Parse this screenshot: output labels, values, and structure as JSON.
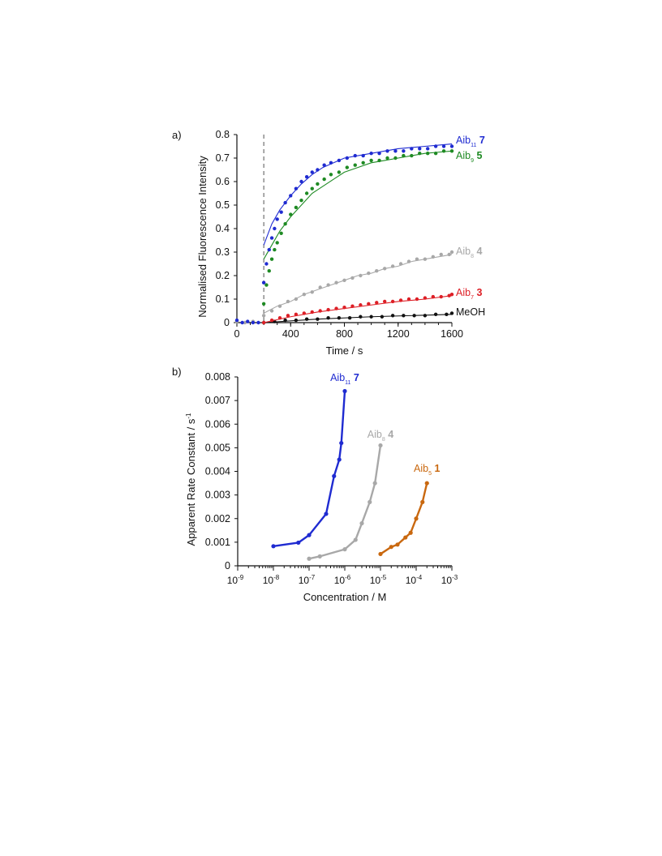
{
  "colors": {
    "blue": "#1f2bd1",
    "green": "#1e8a23",
    "gray": "#a8a8a8",
    "red": "#dd1f26",
    "black": "#111111",
    "orange": "#c9680f"
  },
  "chart_data": [
    {
      "panel": "a)",
      "type": "scatter",
      "xlabel": "Time  / s",
      "ylabel": "Normalised Fluorescence Intensity",
      "xlim": [
        0,
        1600
      ],
      "ylim": [
        0,
        0.8
      ],
      "xticks": [
        0,
        400,
        800,
        1200,
        1600
      ],
      "yticks": [
        0,
        0.1,
        0.2,
        0.3,
        0.4,
        0.5,
        0.6,
        0.7,
        0.8
      ],
      "ytick_labels": [
        "0",
        "0.1",
        "0.2",
        "0.3",
        "0.4",
        "0.5",
        "0.6",
        "0.7",
        "0.8"
      ],
      "dashed_marker_x": 200,
      "series": [
        {
          "label": [
            "Aib",
            "11",
            "7"
          ],
          "color": "blue",
          "points": [
            [
              0,
              0.01
            ],
            [
              40,
              0.0
            ],
            [
              80,
              0.005
            ],
            [
              120,
              0.0
            ],
            [
              160,
              0.0
            ],
            [
              200,
              0.17
            ],
            [
              220,
              0.25
            ],
            [
              240,
              0.31
            ],
            [
              260,
              0.36
            ],
            [
              280,
              0.4
            ],
            [
              300,
              0.44
            ],
            [
              330,
              0.47
            ],
            [
              360,
              0.51
            ],
            [
              400,
              0.54
            ],
            [
              440,
              0.57
            ],
            [
              480,
              0.6
            ],
            [
              520,
              0.62
            ],
            [
              560,
              0.64
            ],
            [
              600,
              0.65
            ],
            [
              650,
              0.67
            ],
            [
              700,
              0.68
            ],
            [
              760,
              0.69
            ],
            [
              820,
              0.7
            ],
            [
              880,
              0.71
            ],
            [
              940,
              0.71
            ],
            [
              1000,
              0.72
            ],
            [
              1060,
              0.72
            ],
            [
              1120,
              0.73
            ],
            [
              1180,
              0.73
            ],
            [
              1240,
              0.73
            ],
            [
              1300,
              0.74
            ],
            [
              1360,
              0.74
            ],
            [
              1420,
              0.74
            ],
            [
              1480,
              0.75
            ],
            [
              1540,
              0.75
            ],
            [
              1600,
              0.75
            ]
          ],
          "fit": [
            [
              200,
              0.33
            ],
            [
              260,
              0.42
            ],
            [
              320,
              0.48
            ],
            [
              400,
              0.54
            ],
            [
              480,
              0.59
            ],
            [
              560,
              0.63
            ],
            [
              640,
              0.66
            ],
            [
              720,
              0.68
            ],
            [
              800,
              0.7
            ],
            [
              900,
              0.71
            ],
            [
              1000,
              0.72
            ],
            [
              1100,
              0.73
            ],
            [
              1200,
              0.74
            ],
            [
              1300,
              0.745
            ],
            [
              1400,
              0.75
            ],
            [
              1500,
              0.755
            ],
            [
              1600,
              0.76
            ]
          ]
        },
        {
          "label": [
            "Aib",
            "9",
            "5"
          ],
          "color": "green",
          "points": [
            [
              200,
              0.08
            ],
            [
              220,
              0.16
            ],
            [
              240,
              0.22
            ],
            [
              260,
              0.27
            ],
            [
              280,
              0.31
            ],
            [
              300,
              0.34
            ],
            [
              330,
              0.38
            ],
            [
              360,
              0.42
            ],
            [
              400,
              0.46
            ],
            [
              440,
              0.49
            ],
            [
              480,
              0.52
            ],
            [
              520,
              0.55
            ],
            [
              560,
              0.57
            ],
            [
              600,
              0.59
            ],
            [
              650,
              0.61
            ],
            [
              700,
              0.63
            ],
            [
              760,
              0.64
            ],
            [
              820,
              0.66
            ],
            [
              880,
              0.67
            ],
            [
              940,
              0.68
            ],
            [
              1000,
              0.69
            ],
            [
              1060,
              0.69
            ],
            [
              1120,
              0.7
            ],
            [
              1180,
              0.7
            ],
            [
              1240,
              0.71
            ],
            [
              1300,
              0.71
            ],
            [
              1360,
              0.72
            ],
            [
              1420,
              0.72
            ],
            [
              1480,
              0.72
            ],
            [
              1540,
              0.73
            ],
            [
              1600,
              0.73
            ]
          ],
          "fit": [
            [
              200,
              0.27
            ],
            [
              260,
              0.33
            ],
            [
              320,
              0.39
            ],
            [
              400,
              0.45
            ],
            [
              480,
              0.5
            ],
            [
              560,
              0.55
            ],
            [
              640,
              0.58
            ],
            [
              720,
              0.61
            ],
            [
              800,
              0.64
            ],
            [
              900,
              0.66
            ],
            [
              1000,
              0.68
            ],
            [
              1100,
              0.69
            ],
            [
              1200,
              0.7
            ],
            [
              1300,
              0.71
            ],
            [
              1400,
              0.72
            ],
            [
              1500,
              0.725
            ],
            [
              1600,
              0.73
            ]
          ]
        },
        {
          "label": [
            "Aib",
            "8",
            "4"
          ],
          "color": "gray",
          "points": [
            [
              0,
              0.005
            ],
            [
              60,
              0.0
            ],
            [
              120,
              0.005
            ],
            [
              200,
              0.03
            ],
            [
              260,
              0.05
            ],
            [
              320,
              0.07
            ],
            [
              380,
              0.09
            ],
            [
              440,
              0.1
            ],
            [
              500,
              0.12
            ],
            [
              560,
              0.13
            ],
            [
              620,
              0.15
            ],
            [
              680,
              0.16
            ],
            [
              740,
              0.17
            ],
            [
              800,
              0.18
            ],
            [
              860,
              0.19
            ],
            [
              920,
              0.2
            ],
            [
              980,
              0.21
            ],
            [
              1040,
              0.22
            ],
            [
              1100,
              0.23
            ],
            [
              1160,
              0.24
            ],
            [
              1220,
              0.25
            ],
            [
              1280,
              0.26
            ],
            [
              1340,
              0.27
            ],
            [
              1400,
              0.27
            ],
            [
              1460,
              0.28
            ],
            [
              1520,
              0.29
            ],
            [
              1580,
              0.29
            ],
            [
              1600,
              0.3
            ]
          ],
          "fit": [
            [
              200,
              0.04
            ],
            [
              300,
              0.07
            ],
            [
              400,
              0.09
            ],
            [
              500,
              0.12
            ],
            [
              600,
              0.14
            ],
            [
              700,
              0.16
            ],
            [
              800,
              0.18
            ],
            [
              900,
              0.2
            ],
            [
              1000,
              0.21
            ],
            [
              1100,
              0.23
            ],
            [
              1200,
              0.24
            ],
            [
              1300,
              0.26
            ],
            [
              1400,
              0.27
            ],
            [
              1500,
              0.28
            ],
            [
              1600,
              0.29
            ]
          ]
        },
        {
          "label": [
            "Aib",
            "7",
            "3"
          ],
          "color": "red",
          "points": [
            [
              200,
              0.0
            ],
            [
              260,
              0.01
            ],
            [
              320,
              0.02
            ],
            [
              380,
              0.03
            ],
            [
              440,
              0.035
            ],
            [
              500,
              0.04
            ],
            [
              560,
              0.045
            ],
            [
              620,
              0.05
            ],
            [
              680,
              0.055
            ],
            [
              740,
              0.06
            ],
            [
              800,
              0.065
            ],
            [
              860,
              0.07
            ],
            [
              920,
              0.075
            ],
            [
              980,
              0.08
            ],
            [
              1040,
              0.085
            ],
            [
              1100,
              0.09
            ],
            [
              1160,
              0.09
            ],
            [
              1220,
              0.095
            ],
            [
              1280,
              0.1
            ],
            [
              1340,
              0.1
            ],
            [
              1400,
              0.105
            ],
            [
              1460,
              0.11
            ],
            [
              1520,
              0.11
            ],
            [
              1580,
              0.115
            ],
            [
              1600,
              0.12
            ]
          ],
          "fit": [
            [
              200,
              0.0
            ],
            [
              400,
              0.025
            ],
            [
              600,
              0.045
            ],
            [
              800,
              0.06
            ],
            [
              1000,
              0.075
            ],
            [
              1200,
              0.09
            ],
            [
              1400,
              0.1
            ],
            [
              1600,
              0.115
            ]
          ]
        },
        {
          "label": [
            "MeOH",
            "",
            ""
          ],
          "color": "black",
          "points": [
            [
              200,
              0.0
            ],
            [
              280,
              0.005
            ],
            [
              360,
              0.01
            ],
            [
              440,
              0.01
            ],
            [
              520,
              0.015
            ],
            [
              600,
              0.015
            ],
            [
              680,
              0.02
            ],
            [
              760,
              0.02
            ],
            [
              840,
              0.02
            ],
            [
              920,
              0.025
            ],
            [
              1000,
              0.025
            ],
            [
              1080,
              0.025
            ],
            [
              1160,
              0.03
            ],
            [
              1240,
              0.03
            ],
            [
              1320,
              0.03
            ],
            [
              1400,
              0.03
            ],
            [
              1480,
              0.035
            ],
            [
              1560,
              0.035
            ],
            [
              1600,
              0.04
            ]
          ],
          "fit": [
            [
              200,
              0.0
            ],
            [
              600,
              0.015
            ],
            [
              1000,
              0.025
            ],
            [
              1600,
              0.035
            ]
          ]
        }
      ]
    },
    {
      "panel": "b)",
      "type": "line",
      "xscale": "log",
      "xlabel": "Concentration / M",
      "ylabel": "Apparent Rate Constant / s",
      "ylabel_sup": "-1",
      "xlim": [
        1e-09,
        0.001
      ],
      "ylim": [
        0,
        0.008
      ],
      "xtick_exponents": [
        -9,
        -8,
        -7,
        -6,
        -5,
        -4,
        -3
      ],
      "xtick_base": "10",
      "yticks": [
        0,
        0.001,
        0.002,
        0.003,
        0.004,
        0.005,
        0.006,
        0.007,
        0.008
      ],
      "ytick_labels": [
        "0",
        "0.001",
        "0.002",
        "0.003",
        "0.004",
        "0.005",
        "0.006",
        "0.007",
        "0.008"
      ],
      "series": [
        {
          "label": [
            "Aib",
            "11",
            "7"
          ],
          "color": "blue",
          "points": [
            [
              1e-08,
              0.00083
            ],
            [
              5e-08,
              0.00098
            ],
            [
              1e-07,
              0.0013
            ],
            [
              3e-07,
              0.0022
            ],
            [
              5e-07,
              0.0038
            ],
            [
              7e-07,
              0.0045
            ],
            [
              8e-07,
              0.0052
            ],
            [
              1e-06,
              0.0074
            ]
          ]
        },
        {
          "label": [
            "Aib",
            "8",
            "4"
          ],
          "color": "gray",
          "points": [
            [
              1e-07,
              0.0003
            ],
            [
              2e-07,
              0.0004
            ],
            [
              1e-06,
              0.0007
            ],
            [
              2e-06,
              0.0011
            ],
            [
              3e-06,
              0.0018
            ],
            [
              5e-06,
              0.0027
            ],
            [
              7e-06,
              0.0035
            ],
            [
              1e-05,
              0.0051
            ]
          ]
        },
        {
          "label": [
            "Aib",
            "5",
            "1"
          ],
          "color": "orange",
          "points": [
            [
              1e-05,
              0.0005
            ],
            [
              2e-05,
              0.0008
            ],
            [
              3e-05,
              0.0009
            ],
            [
              5e-05,
              0.0012
            ],
            [
              7e-05,
              0.0014
            ],
            [
              0.0001,
              0.002
            ],
            [
              0.00015,
              0.0027
            ],
            [
              0.0002,
              0.0035
            ]
          ]
        }
      ]
    }
  ]
}
